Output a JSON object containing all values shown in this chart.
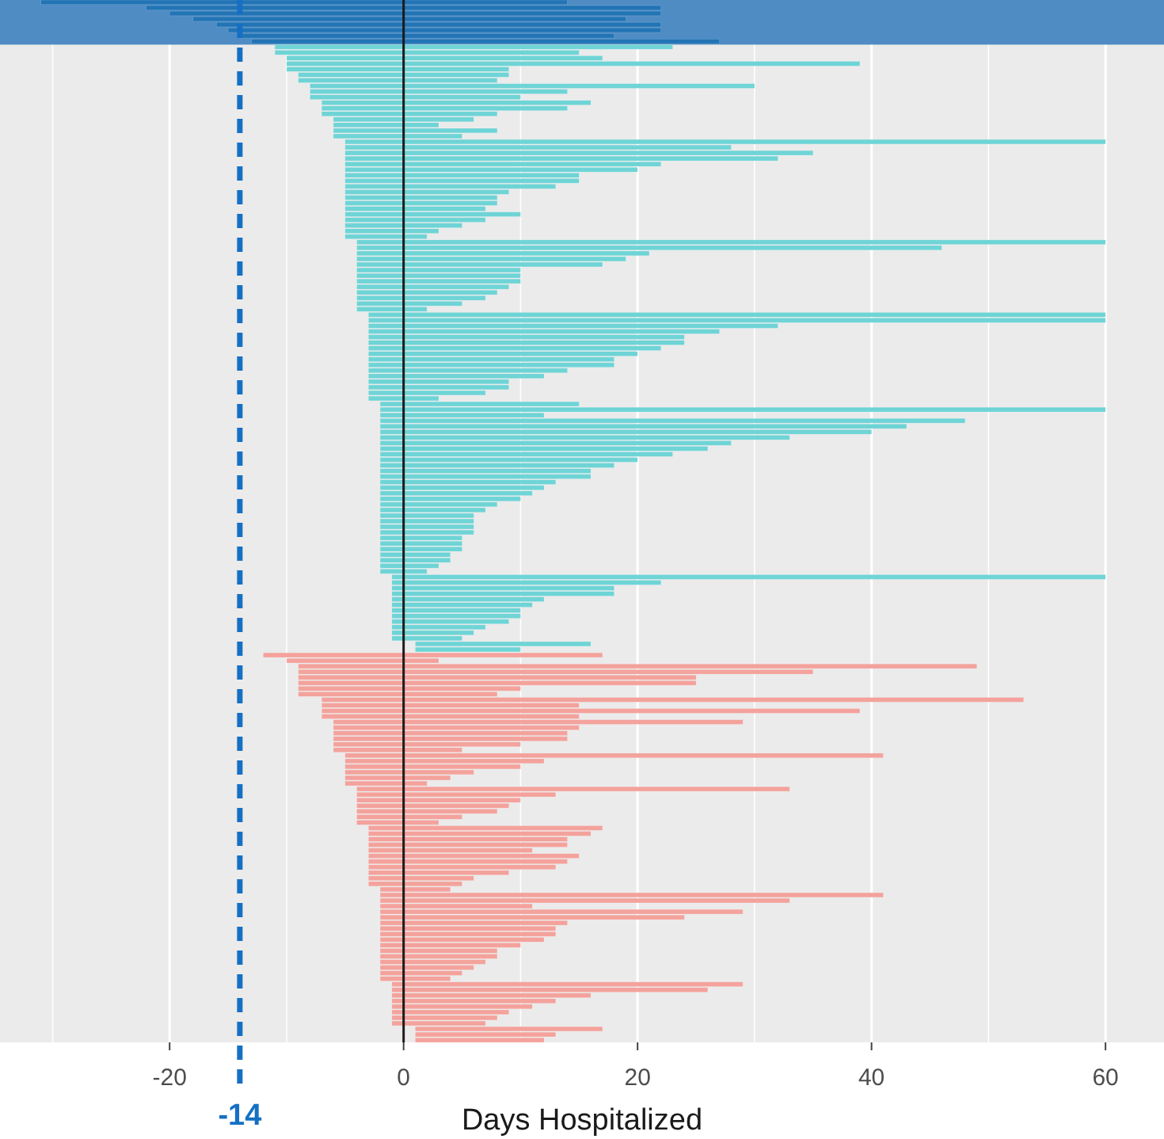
{
  "chart_data": {
    "type": "bar",
    "orientation": "horizontal",
    "xlabel": "Days Hospitalized",
    "xlim": [
      -34.5,
      65
    ],
    "xticks": [
      -20,
      0,
      20,
      40,
      60
    ],
    "grid": "x",
    "tick_labels": "x",
    "categories": [
      null,
      null,
      null,
      null,
      null,
      null,
      null,
      null,
      null,
      null,
      null,
      null,
      null,
      null,
      null,
      null,
      null,
      null,
      null,
      null,
      null,
      null,
      null,
      null,
      null,
      null,
      null,
      null,
      null,
      null,
      null,
      null,
      null,
      null,
      null,
      null,
      null,
      null,
      null,
      null,
      null,
      null,
      null,
      null,
      null,
      null,
      null,
      null,
      null,
      null,
      null,
      null,
      null,
      null,
      null,
      null,
      null,
      null,
      null,
      null,
      null,
      null,
      null,
      null,
      null,
      null,
      null,
      null,
      null,
      null,
      null,
      null,
      null,
      null,
      null,
      null,
      null,
      null,
      null,
      null,
      null,
      null,
      null,
      null,
      null,
      null,
      null,
      null,
      null,
      null,
      null,
      null,
      null,
      null,
      null,
      null,
      null,
      null,
      null,
      null,
      null,
      null,
      null,
      null,
      null,
      null,
      null,
      null,
      null,
      null,
      null,
      null,
      null,
      null,
      null,
      null,
      null,
      null,
      null,
      null,
      null,
      null,
      null,
      null,
      null,
      null,
      null,
      null,
      null,
      null,
      null,
      null,
      null,
      null,
      null,
      null,
      null,
      null,
      null,
      null,
      null,
      null,
      null,
      null,
      null,
      null,
      null,
      null,
      null,
      null,
      null,
      null,
      null,
      null,
      null,
      null,
      null,
      null,
      null,
      null,
      null,
      null,
      null,
      null,
      null,
      null,
      null,
      null,
      null,
      null,
      null,
      null,
      null,
      null,
      null,
      null,
      null,
      null,
      null,
      null,
      null,
      null,
      null,
      null,
      null,
      null,
      null
    ],
    "base": [
      -31,
      -22,
      -20,
      -18,
      -16,
      -15,
      -14,
      -13,
      -11,
      -11,
      -10,
      -10,
      -10,
      -9,
      -9,
      -8,
      -8,
      -8,
      -7,
      -7,
      -7,
      -6,
      -6,
      -6,
      -6,
      -5,
      -5,
      -5,
      -5,
      -5,
      -5,
      -5,
      -5,
      -5,
      -5,
      -5,
      -5,
      -5,
      -5,
      -5,
      -5,
      -5,
      -5,
      -4,
      -4,
      -4,
      -4,
      -4,
      -4,
      -4,
      -4,
      -4,
      -4,
      -4,
      -4,
      -4,
      -3,
      -3,
      -3,
      -3,
      -3,
      -3,
      -3,
      -3,
      -3,
      -3,
      -3,
      -3,
      -3,
      -3,
      -3,
      -3,
      -2,
      -2,
      -2,
      -2,
      -2,
      -2,
      -2,
      -2,
      -2,
      -2,
      -2,
      -2,
      -2,
      -2,
      -2,
      -2,
      -2,
      -2,
      -2,
      -2,
      -2,
      -2,
      -2,
      -2,
      -2,
      -2,
      -2,
      -2,
      -2,
      -2,
      -2,
      -1,
      -1,
      -1,
      -1,
      -1,
      -1,
      -1,
      -1,
      -1,
      -1,
      -1,
      -1,
      1,
      1,
      -12,
      -10,
      -9,
      -9,
      -9,
      -9,
      -9,
      -9,
      -7,
      -7,
      -7,
      -7,
      -6,
      -6,
      -6,
      -6,
      -6,
      -6,
      -5,
      -5,
      -5,
      -5,
      -5,
      -5,
      -4,
      -4,
      -4,
      -4,
      -4,
      -4,
      -4,
      -3,
      -3,
      -3,
      -3,
      -3,
      -3,
      -3,
      -3,
      -3,
      -3,
      -3,
      -2,
      -2,
      -2,
      -2,
      -2,
      -2,
      -2,
      -2,
      -2,
      -2,
      -2,
      -2,
      -2,
      -2,
      -2,
      -2,
      -2,
      -1,
      -1,
      -1,
      -1,
      -1,
      -1,
      -1,
      -1,
      1,
      1,
      1
    ],
    "values": [
      45,
      44,
      42,
      37,
      38,
      37,
      32,
      40,
      34,
      26,
      27,
      49,
      19,
      18,
      17,
      38,
      22,
      18,
      23,
      21,
      15,
      12,
      9,
      14,
      11,
      65,
      33,
      40,
      37,
      27,
      25,
      20,
      20,
      18,
      14,
      13,
      13,
      12,
      15,
      12,
      10,
      8,
      7,
      64,
      50,
      25,
      23,
      21,
      14,
      14,
      14,
      13,
      12,
      11,
      9,
      6,
      63,
      63,
      35,
      30,
      27,
      27,
      25,
      23,
      21,
      21,
      17,
      15,
      12,
      12,
      10,
      6,
      17,
      62,
      14,
      50,
      45,
      42,
      35,
      30,
      28,
      25,
      22,
      20,
      18,
      18,
      15,
      14,
      13,
      12,
      10,
      9,
      8,
      8,
      8,
      8,
      7,
      7,
      7,
      6,
      6,
      5,
      4,
      61,
      23,
      19,
      19,
      13,
      12,
      11,
      11,
      10,
      8,
      7,
      6,
      15,
      9,
      29,
      13,
      58,
      44,
      34,
      34,
      19,
      17,
      60,
      22,
      46,
      22,
      35,
      21,
      20,
      20,
      16,
      11,
      46,
      17,
      15,
      11,
      9,
      7,
      37,
      17,
      14,
      13,
      12,
      9,
      7,
      20,
      19,
      17,
      17,
      14,
      18,
      17,
      16,
      12,
      9,
      8,
      6,
      43,
      35,
      13,
      31,
      26,
      16,
      15,
      15,
      14,
      12,
      10,
      10,
      9,
      8,
      7,
      6,
      30,
      27,
      17,
      14,
      12,
      10,
      9,
      8,
      16,
      12,
      11
    ],
    "colors": [
      "#2274b5",
      "#2274b5",
      "#2274b5",
      "#2274b5",
      "#2274b5",
      "#2274b5",
      "#2274b5",
      "#2274b5",
      "#6fd4d6",
      "#6fd4d6",
      "#6fd4d6",
      "#6fd4d6",
      "#6fd4d6",
      "#6fd4d6",
      "#6fd4d6",
      "#6fd4d6",
      "#6fd4d6",
      "#6fd4d6",
      "#6fd4d6",
      "#6fd4d6",
      "#6fd4d6",
      "#6fd4d6",
      "#6fd4d6",
      "#6fd4d6",
      "#6fd4d6",
      "#6fd4d6",
      "#6fd4d6",
      "#6fd4d6",
      "#6fd4d6",
      "#6fd4d6",
      "#6fd4d6",
      "#6fd4d6",
      "#6fd4d6",
      "#6fd4d6",
      "#6fd4d6",
      "#6fd4d6",
      "#6fd4d6",
      "#6fd4d6",
      "#6fd4d6",
      "#6fd4d6",
      "#6fd4d6",
      "#6fd4d6",
      "#6fd4d6",
      "#6fd4d6",
      "#6fd4d6",
      "#6fd4d6",
      "#6fd4d6",
      "#6fd4d6",
      "#6fd4d6",
      "#6fd4d6",
      "#6fd4d6",
      "#6fd4d6",
      "#6fd4d6",
      "#6fd4d6",
      "#6fd4d6",
      "#6fd4d6",
      "#6fd4d6",
      "#6fd4d6",
      "#6fd4d6",
      "#6fd4d6",
      "#6fd4d6",
      "#6fd4d6",
      "#6fd4d6",
      "#6fd4d6",
      "#6fd4d6",
      "#6fd4d6",
      "#6fd4d6",
      "#6fd4d6",
      "#6fd4d6",
      "#6fd4d6",
      "#6fd4d6",
      "#6fd4d6",
      "#6fd4d6",
      "#6fd4d6",
      "#6fd4d6",
      "#6fd4d6",
      "#6fd4d6",
      "#6fd4d6",
      "#6fd4d6",
      "#6fd4d6",
      "#6fd4d6",
      "#6fd4d6",
      "#6fd4d6",
      "#6fd4d6",
      "#6fd4d6",
      "#6fd4d6",
      "#6fd4d6",
      "#6fd4d6",
      "#6fd4d6",
      "#6fd4d6",
      "#6fd4d6",
      "#6fd4d6",
      "#6fd4d6",
      "#6fd4d6",
      "#6fd4d6",
      "#6fd4d6",
      "#6fd4d6",
      "#6fd4d6",
      "#6fd4d6",
      "#6fd4d6",
      "#6fd4d6",
      "#6fd4d6",
      "#6fd4d6",
      "#6fd4d6",
      "#6fd4d6",
      "#6fd4d6",
      "#6fd4d6",
      "#6fd4d6",
      "#6fd4d6",
      "#6fd4d6",
      "#6fd4d6",
      "#6fd4d6",
      "#6fd4d6",
      "#6fd4d6",
      "#6fd4d6",
      "#6fd4d6",
      "#6fd4d6",
      "#f4a29c",
      "#f4a29c",
      "#f4a29c",
      "#f4a29c",
      "#f4a29c",
      "#f4a29c",
      "#f4a29c",
      "#f4a29c",
      "#f4a29c",
      "#f4a29c",
      "#f4a29c",
      "#f4a29c",
      "#f4a29c",
      "#f4a29c",
      "#f4a29c",
      "#f4a29c",
      "#f4a29c",
      "#f4a29c",
      "#f4a29c",
      "#f4a29c",
      "#f4a29c",
      "#f4a29c",
      "#f4a29c",
      "#f4a29c",
      "#f4a29c",
      "#f4a29c",
      "#f4a29c",
      "#f4a29c",
      "#f4a29c",
      "#f4a29c",
      "#f4a29c",
      "#f4a29c",
      "#f4a29c",
      "#f4a29c",
      "#f4a29c",
      "#f4a29c",
      "#f4a29c",
      "#f4a29c",
      "#f4a29c",
      "#f4a29c",
      "#f4a29c",
      "#f4a29c",
      "#f4a29c",
      "#f4a29c",
      "#f4a29c",
      "#f4a29c",
      "#f4a29c",
      "#f4a29c",
      "#f4a29c",
      "#f4a29c",
      "#f4a29c",
      "#f4a29c",
      "#f4a29c",
      "#f4a29c",
      "#f4a29c",
      "#f4a29c",
      "#f4a29c",
      "#f4a29c",
      "#f4a29c",
      "#f4a29c",
      "#f4a29c",
      "#f4a29c",
      "#f4a29c",
      "#f4a29c",
      "#f4a29c",
      "#f4a29c",
      "#f4a29c",
      "#f4a29c",
      "#f4a29c",
      "#f4a29c"
    ],
    "ref_lines": [
      {
        "axis": "x",
        "value": 0,
        "color": "#1a1a1a",
        "line_style": "solid"
      },
      {
        "axis": "x",
        "value": -14,
        "label": "-14",
        "color": "#1570c4",
        "line_style": "dashed"
      }
    ]
  }
}
